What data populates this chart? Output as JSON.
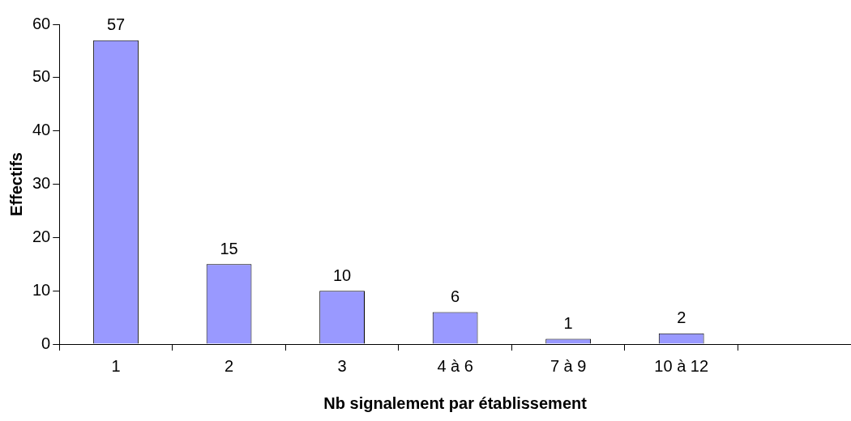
{
  "chart_data": {
    "type": "bar",
    "xlabel": "Nb signalement par établissement",
    "ylabel": "Effectifs",
    "categories": [
      "1",
      "2",
      "3",
      "4 à 6",
      "7 à 9",
      "10 à 12",
      null
    ],
    "values": [
      57,
      15,
      10,
      6,
      1,
      2,
      null
    ],
    "color": "#9999ff",
    "ylim": [
      0,
      60
    ],
    "yticks": [
      0,
      10,
      20,
      30,
      40,
      50,
      60
    ],
    "grid": false,
    "legend": false,
    "data_labels": true
  }
}
